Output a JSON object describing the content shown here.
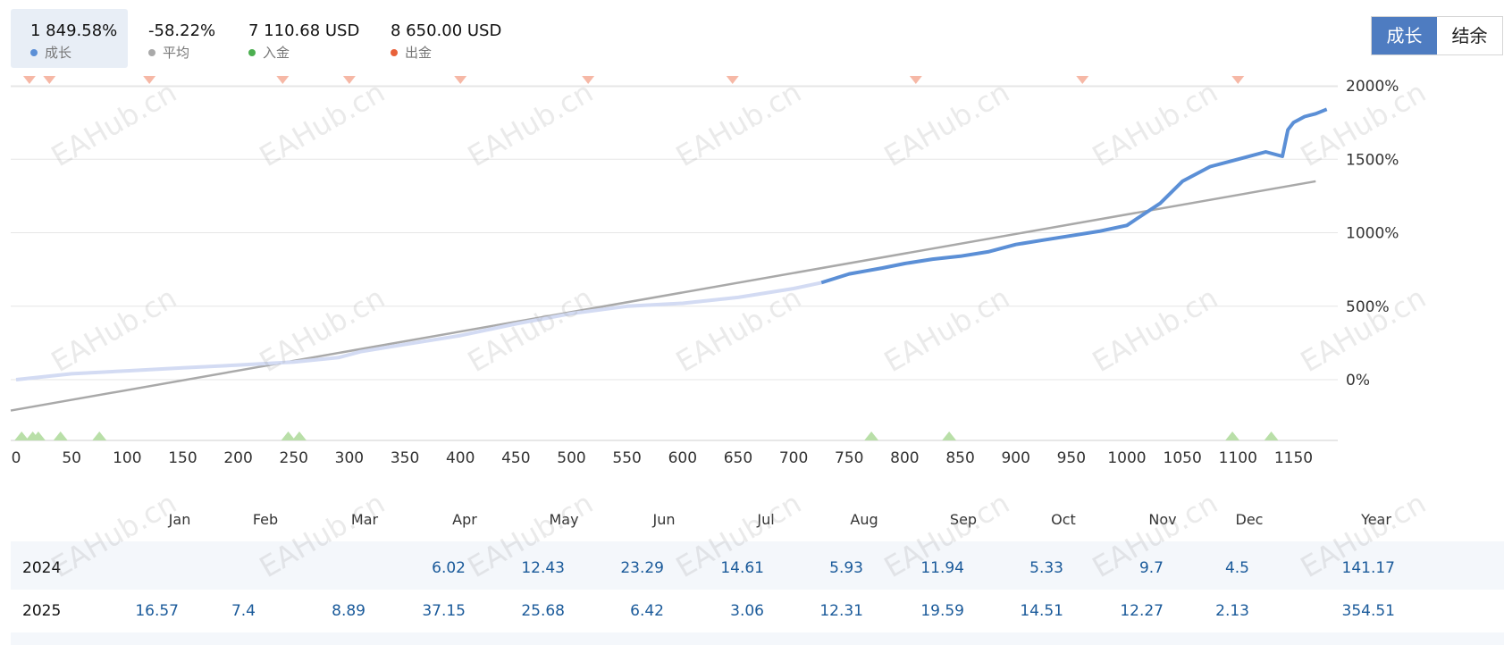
{
  "stats": [
    {
      "value": "1 849.58%",
      "label": "成长",
      "color": "#5b8fd6"
    },
    {
      "value": "-58.22%",
      "label": "平均",
      "color": "#a9a9a9"
    },
    {
      "value": "7 110.68 USD",
      "label": "入金",
      "color": "#4caf50"
    },
    {
      "value": "8 650.00 USD",
      "label": "出金",
      "color": "#e8613a"
    }
  ],
  "toggle": {
    "growth": "成长",
    "balance": "结余"
  },
  "chart_data": {
    "type": "line",
    "x_ticks": [
      0,
      50,
      100,
      150,
      200,
      250,
      300,
      350,
      400,
      450,
      500,
      550,
      600,
      650,
      700,
      750,
      800,
      850,
      900,
      950,
      1000,
      1050,
      1100,
      1150
    ],
    "y_ticks": [
      "2000%",
      "1500%",
      "1000%",
      "500%",
      "0%"
    ],
    "y_tick_values": [
      2000,
      1500,
      1000,
      500,
      0
    ],
    "xlim": [
      0,
      1180
    ],
    "ylim": [
      -420,
      2000
    ],
    "series": [
      {
        "name": "成长",
        "color": "#5b8fd6",
        "highlight_from_x": 725,
        "x": [
          0,
          50,
          100,
          150,
          200,
          250,
          290,
          310,
          350,
          400,
          450,
          500,
          550,
          600,
          650,
          700,
          725,
          750,
          765,
          780,
          800,
          825,
          850,
          875,
          900,
          925,
          950,
          975,
          1000,
          1010,
          1030,
          1050,
          1075,
          1100,
          1125,
          1140,
          1145,
          1150,
          1160,
          1170,
          1180
        ],
        "y": [
          0,
          40,
          60,
          80,
          100,
          120,
          150,
          190,
          240,
          300,
          380,
          450,
          500,
          520,
          560,
          620,
          660,
          720,
          740,
          760,
          790,
          820,
          840,
          870,
          920,
          950,
          980,
          1010,
          1050,
          1100,
          1200,
          1350,
          1450,
          1500,
          1550,
          1520,
          1700,
          1750,
          1790,
          1810,
          1840
        ]
      },
      {
        "name": "平均",
        "color": "#a9a9a9",
        "x": [
          0,
          1170
        ],
        "y": [
          -210,
          1350
        ]
      }
    ],
    "withdraw_markers_x": [
      12,
      30,
      120,
      240,
      300,
      400,
      515,
      645,
      810,
      960,
      1100
    ],
    "deposit_markers_x": [
      5,
      15,
      20,
      40,
      75,
      245,
      255,
      770,
      840,
      1095,
      1130
    ]
  },
  "months": [
    "Jan",
    "Feb",
    "Mar",
    "Apr",
    "May",
    "Jun",
    "Jul",
    "Aug",
    "Sep",
    "Oct",
    "Nov",
    "Dec",
    "Year"
  ],
  "table": [
    {
      "year": "2024",
      "values": [
        "",
        "",
        "",
        "6.02",
        "12.43",
        "23.29",
        "14.61",
        "5.93",
        "11.94",
        "5.33",
        "9.7",
        "4.5",
        "141.17"
      ]
    },
    {
      "year": "2025",
      "values": [
        "16.57",
        "7.4",
        "8.89",
        "37.15",
        "25.68",
        "6.42",
        "3.06",
        "12.31",
        "19.59",
        "14.51",
        "12.27",
        "2.13",
        "354.51"
      ]
    }
  ],
  "watermark": "EAHub.cn"
}
